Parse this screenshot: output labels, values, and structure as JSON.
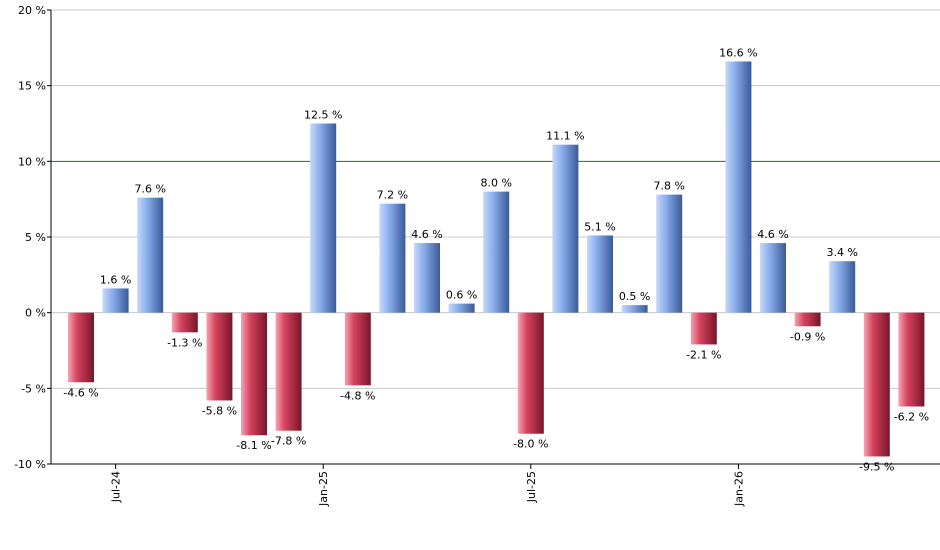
{
  "chart_data": {
    "type": "bar",
    "title": "",
    "xlabel": "",
    "ylabel": "",
    "ylim": [
      -10,
      20
    ],
    "yticks": [
      20,
      15,
      10,
      5,
      0,
      -5,
      -10
    ],
    "ytick_labels": [
      "20 %",
      "15 %",
      "10 %",
      "5 %",
      "0 %",
      "-5 %",
      "-10 %"
    ],
    "grid": true,
    "reference_line": {
      "value": 10,
      "color": "#1a7a1a"
    },
    "positive_color": "#7a9fe0",
    "negative_color": "#c0304a",
    "x_tick_labels": [
      {
        "label": "Jul-24",
        "index": 1
      },
      {
        "label": "Jan-25",
        "index": 7
      },
      {
        "label": "Jul-25",
        "index": 13
      },
      {
        "label": "Jan-26",
        "index": 19
      }
    ],
    "values": [
      -4.6,
      1.6,
      7.6,
      -1.3,
      -5.8,
      -8.1,
      -7.8,
      12.5,
      -4.8,
      7.2,
      4.6,
      0.6,
      8.0,
      -8.0,
      11.1,
      5.1,
      0.5,
      7.8,
      -2.1,
      16.6,
      4.6,
      -0.9,
      3.4,
      -9.5,
      -6.2
    ],
    "labels": [
      "-4.6 %",
      "1.6 %",
      "7.6 %",
      "-1.3 %",
      "-5.8 %",
      "-8.1 %",
      "-7.8 %",
      "12.5 %",
      "-4.8 %",
      "7.2 %",
      "4.6 %",
      "0.6 %",
      "8.0 %",
      "-8.0 %",
      "11.1 %",
      "5.1 %",
      "0.5 %",
      "7.8 %",
      "-2.1 %",
      "16.6 %",
      "4.6 %",
      "-0.9 %",
      "3.4 %",
      "-9.5 %",
      "-6.2 %"
    ]
  }
}
